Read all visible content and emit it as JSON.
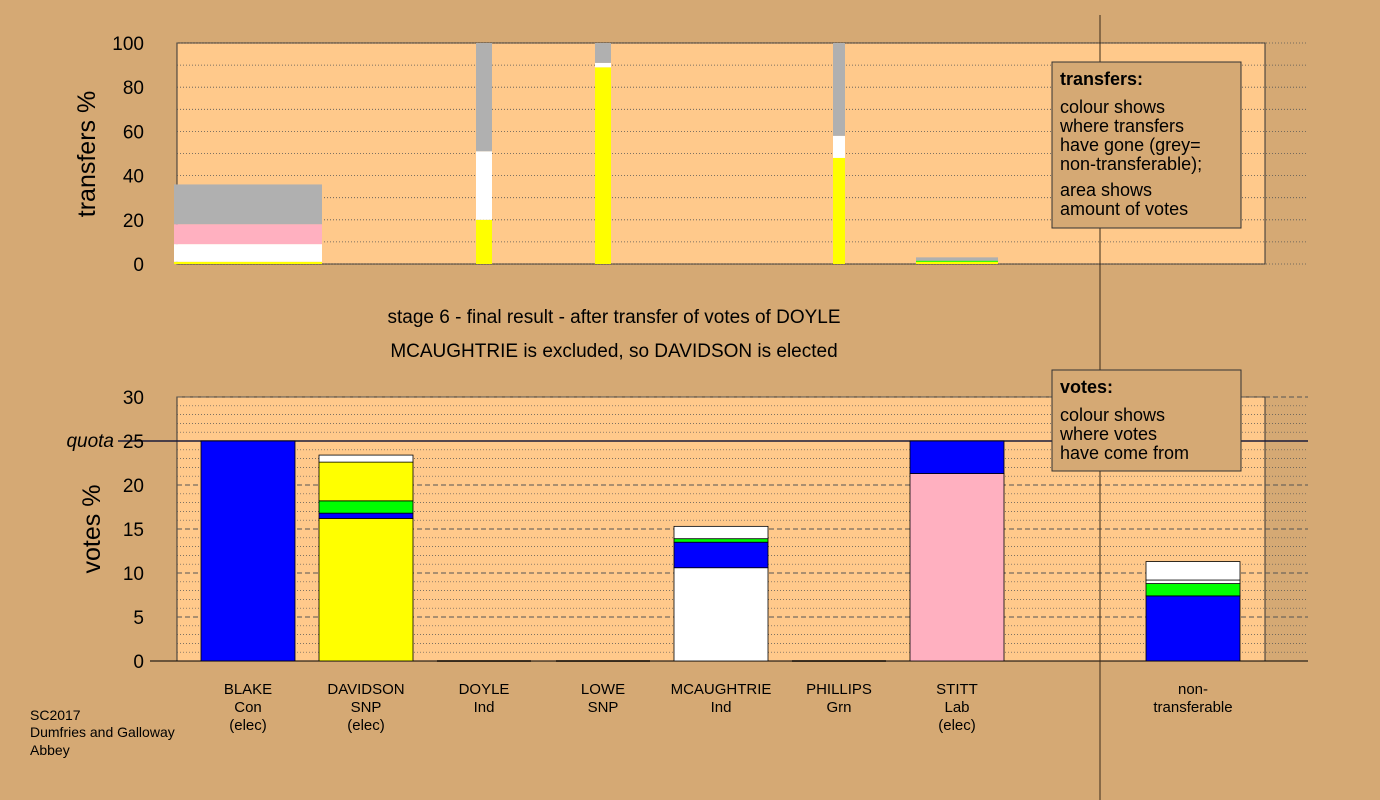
{
  "chart_data": [
    {
      "type": "bar",
      "stacked": true,
      "ylabel": "transfers %",
      "ylim": [
        0,
        100
      ],
      "yticks": [
        0,
        20,
        40,
        60,
        80,
        100
      ],
      "candidates": [
        "BLAKE",
        "DAVIDSON",
        "DOYLE",
        "LOWE",
        "MCAUGHTRIE",
        "PHILLIPS",
        "STITT",
        "non-transferable"
      ],
      "bars": [
        {
          "candidate": "BLAKE",
          "width_votes": 36,
          "segments": [
            {
              "color": "#ffff00",
              "from": 0,
              "to": 1
            },
            {
              "color": "#ffffff",
              "from": 1,
              "to": 9
            },
            {
              "color": "#ffb0c0",
              "from": 9,
              "to": 18
            },
            {
              "color": "#b0b0b0",
              "from": 18,
              "to": 36
            }
          ]
        },
        {
          "candidate": "DOYLE",
          "width_votes": 100,
          "segments": [
            {
              "color": "#ffff00",
              "from": 0,
              "to": 20
            },
            {
              "color": "#ffffff",
              "from": 20,
              "to": 51
            },
            {
              "color": "#b0b0b0",
              "from": 51,
              "to": 100
            }
          ]
        },
        {
          "candidate": "LOWE",
          "width_votes": 100,
          "segments": [
            {
              "color": "#ffff00",
              "from": 0,
              "to": 89
            },
            {
              "color": "#ffffff",
              "from": 89,
              "to": 91
            },
            {
              "color": "#b0b0b0",
              "from": 91,
              "to": 100
            }
          ]
        },
        {
          "candidate": "PHILLIPS",
          "width_votes": 100,
          "segments": [
            {
              "color": "#ffff00",
              "from": 0,
              "to": 48
            },
            {
              "color": "#ffffff",
              "from": 48,
              "to": 58
            },
            {
              "color": "#b0b0b0",
              "from": 58,
              "to": 100
            }
          ]
        },
        {
          "candidate": "STITT",
          "width_votes": 3,
          "segments": [
            {
              "color": "#ffff00",
              "from": 0,
              "to": 1
            },
            {
              "color": "#00ff00",
              "from": 1,
              "to": 1.5
            },
            {
              "color": "#b0b0b0",
              "from": 1.5,
              "to": 3
            }
          ]
        }
      ],
      "legend": {
        "title": "transfers:",
        "lines": [
          "colour shows",
          "where transfers",
          "have gone (grey=",
          "non-transferable);"
        ],
        "lines2": [
          "area shows",
          "amount of votes"
        ]
      }
    },
    {
      "type": "bar",
      "stacked": true,
      "ylabel": "votes %",
      "ylim": [
        0,
        30
      ],
      "yticks": [
        0,
        5,
        10,
        15,
        20,
        25,
        30
      ],
      "quota": 25,
      "quota_label": "quota",
      "bars": [
        {
          "candidate": "BLAKE",
          "segments": [
            {
              "color": "#0000ff",
              "from": 0,
              "to": 25
            }
          ]
        },
        {
          "candidate": "DAVIDSON",
          "segments": [
            {
              "color": "#ffff00",
              "from": 0,
              "to": 16.2
            },
            {
              "color": "#0000ff",
              "from": 16.2,
              "to": 16.8
            },
            {
              "color": "#00ff00",
              "from": 16.8,
              "to": 18.2
            },
            {
              "color": "#ffff00",
              "from": 18.2,
              "to": 22.6
            },
            {
              "color": "#ffffff",
              "from": 22.6,
              "to": 23.4
            }
          ]
        },
        {
          "candidate": "DOYLE",
          "segments": []
        },
        {
          "candidate": "LOWE",
          "segments": []
        },
        {
          "candidate": "MCAUGHTRIE",
          "segments": [
            {
              "color": "#ffffff",
              "from": 0,
              "to": 10.6
            },
            {
              "color": "#0000ff",
              "from": 10.6,
              "to": 13.5
            },
            {
              "color": "#00ff00",
              "from": 13.5,
              "to": 13.9
            },
            {
              "color": "#ffffff",
              "from": 13.9,
              "to": 15.3
            }
          ]
        },
        {
          "candidate": "PHILLIPS",
          "segments": []
        },
        {
          "candidate": "STITT",
          "segments": [
            {
              "color": "#ffb0c0",
              "from": 0,
              "to": 21.3
            },
            {
              "color": "#0000ff",
              "from": 21.3,
              "to": 25
            }
          ]
        },
        {
          "candidate": "non-transferable",
          "segments": [
            {
              "color": "#0000ff",
              "from": 0,
              "to": 7.4
            },
            {
              "color": "#00ff00",
              "from": 7.4,
              "to": 8.8
            },
            {
              "color": "#ffffff",
              "from": 8.8,
              "to": 9.2
            },
            {
              "color": "#ffffff",
              "from": 9.2,
              "to": 11.3
            }
          ]
        }
      ],
      "legend": {
        "title": "votes:",
        "lines": [
          "colour shows",
          "where votes",
          "have come from"
        ]
      }
    }
  ],
  "stage_title": "stage 6 - final result - after transfer of votes of DOYLE",
  "stage_subtitle": "MCAUGHTRIE is excluded, so DAVIDSON is elected",
  "candidate_labels": [
    {
      "lines": [
        "BLAKE",
        "Con",
        "(elec)"
      ]
    },
    {
      "lines": [
        "DAVIDSON",
        "SNP",
        "(elec)"
      ]
    },
    {
      "lines": [
        "DOYLE",
        "Ind"
      ]
    },
    {
      "lines": [
        "LOWE",
        "SNP"
      ]
    },
    {
      "lines": [
        "MCAUGHTRIE",
        "Ind"
      ]
    },
    {
      "lines": [
        "PHILLIPS",
        "Grn"
      ]
    },
    {
      "lines": [
        "STITT",
        "Lab",
        "(elec)"
      ]
    },
    {
      "lines": [
        "non-",
        "transferable"
      ]
    }
  ],
  "footer": {
    "line1": "SC2017",
    "line2": "Dumfries and Galloway",
    "line3": "Abbey"
  },
  "colors": {
    "background": "#d5a974",
    "plot": "#ffc98b",
    "grey": "#b0b0b0"
  }
}
